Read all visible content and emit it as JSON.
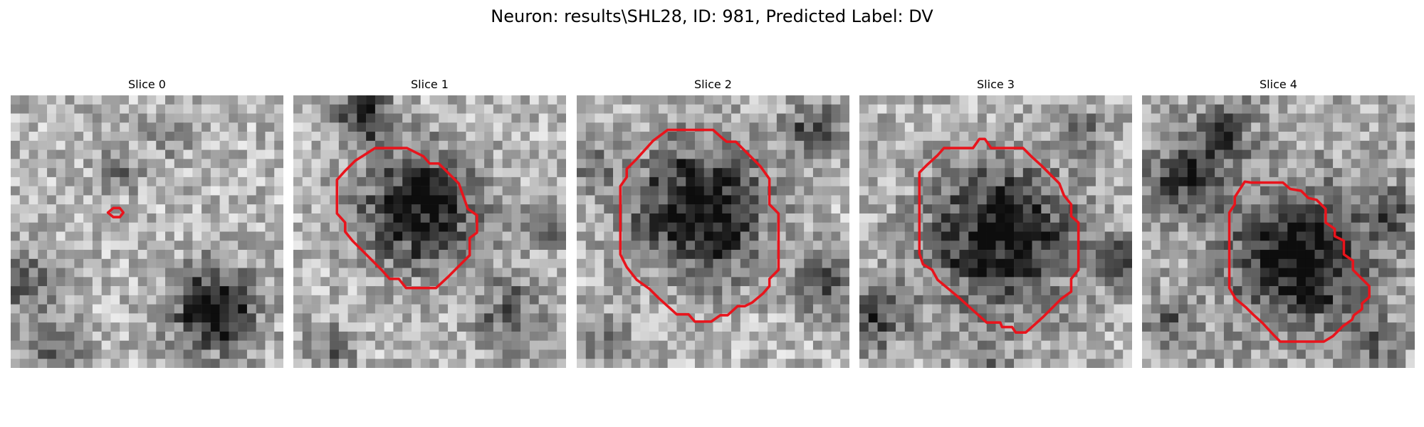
{
  "figure": {
    "title": "Neuron: results\\SHL28, ID: 981, Predicted Label: DV"
  },
  "colors": {
    "contour": "#e8141c",
    "background": "#ffffff"
  },
  "panels": [
    {
      "title": "Slice 0"
    },
    {
      "title": "Slice 1"
    },
    {
      "title": "Slice 2"
    },
    {
      "title": "Slice 3"
    },
    {
      "title": "Slice 4"
    }
  ]
}
